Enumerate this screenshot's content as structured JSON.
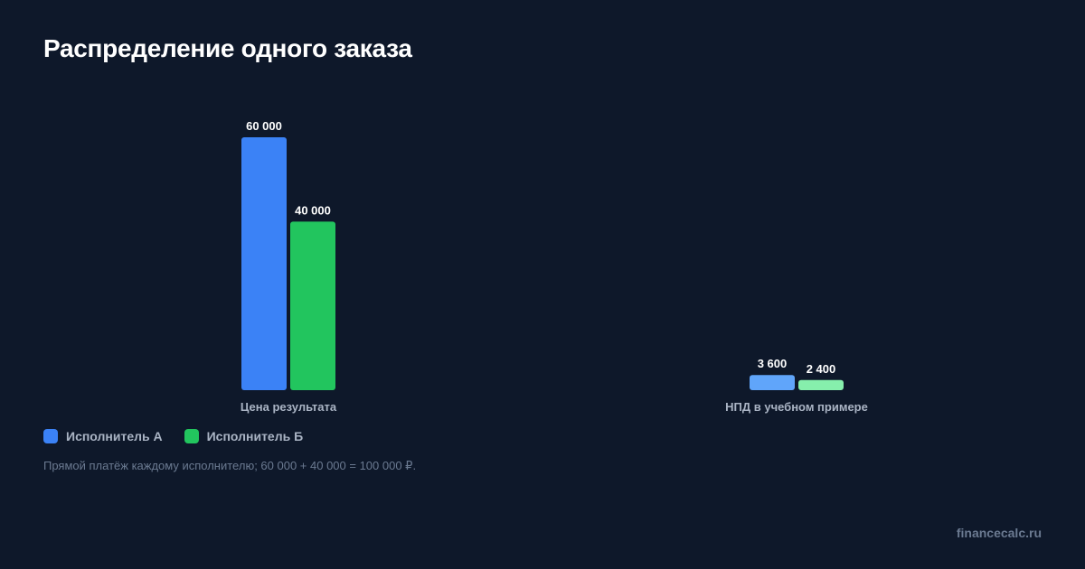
{
  "title": "Распределение одного заказа",
  "chart_data": {
    "type": "bar",
    "categories": [
      "Цена результата",
      "НПД в учебном примере"
    ],
    "series": [
      {
        "name": "Исполнитель А",
        "values": [
          60000,
          3600
        ],
        "labels": [
          "60 000",
          "3 600"
        ],
        "color": "#3b82f6",
        "color_secondary": "#60a5fa"
      },
      {
        "name": "Исполнитель Б",
        "values": [
          40000,
          2400
        ],
        "labels": [
          "40 000",
          "2 400"
        ],
        "color": "#22c55e",
        "color_secondary": "#86efac"
      }
    ],
    "legend": "bottom-left",
    "grid": false
  },
  "note": "Прямой платёж каждому исполнителю; 60 000 + 40 000 = 100 000 ₽.",
  "brand": "financecalc.ru"
}
